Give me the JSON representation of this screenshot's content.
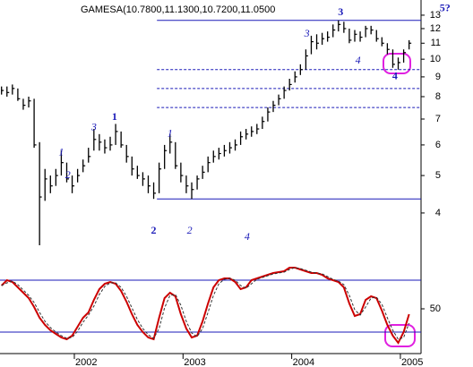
{
  "chart_data": [
    {
      "type": "ohlc",
      "title": "GAMESA(10.7800,11.1300,10.7200,11.0500",
      "log_scale": true,
      "color": "#000000",
      "x": [
        2001.33,
        2001.38,
        2001.43,
        2001.48,
        2001.53,
        2001.58,
        2001.63,
        2001.68,
        2001.73,
        2001.78,
        2001.83,
        2001.88,
        2001.93,
        2001.98,
        2002.03,
        2002.08,
        2002.13,
        2002.18,
        2002.23,
        2002.28,
        2002.33,
        2002.38,
        2002.43,
        2002.48,
        2002.53,
        2002.58,
        2002.63,
        2002.68,
        2002.73,
        2002.78,
        2002.83,
        2002.88,
        2002.93,
        2002.98,
        2003.03,
        2003.08,
        2003.13,
        2003.18,
        2003.23,
        2003.28,
        2003.33,
        2003.38,
        2003.43,
        2003.48,
        2003.53,
        2003.58,
        2003.63,
        2003.68,
        2003.73,
        2003.78,
        2003.83,
        2003.88,
        2003.93,
        2003.98,
        2004.03,
        2004.08,
        2004.13,
        2004.18,
        2004.23,
        2004.28,
        2004.33,
        2004.38,
        2004.43,
        2004.48,
        2004.53,
        2004.58,
        2004.63,
        2004.68,
        2004.73,
        2004.78,
        2004.83,
        2004.88,
        2004.93,
        2004.98,
        2005.03,
        2005.08
      ],
      "high": [
        8.5,
        8.5,
        8.6,
        8.4,
        7.9,
        8.0,
        7.9,
        6.1,
        5.2,
        5.0,
        5.2,
        5.8,
        5.4,
        5.0,
        5.2,
        5.5,
        5.9,
        6.6,
        6.4,
        6.2,
        6.3,
        6.8,
        6.5,
        6.0,
        5.6,
        5.3,
        5.1,
        5.0,
        4.8,
        5.4,
        6.0,
        6.4,
        6.1,
        5.4,
        5.0,
        4.8,
        5.0,
        5.3,
        5.6,
        5.8,
        5.9,
        6.0,
        6.1,
        6.2,
        6.5,
        6.6,
        6.7,
        6.8,
        7.1,
        7.5,
        7.8,
        8.1,
        8.5,
        8.9,
        9.3,
        9.7,
        10.6,
        11.5,
        11.6,
        11.7,
        11.8,
        12.3,
        12.6,
        12.5,
        12.0,
        11.9,
        11.8,
        12.2,
        12.2,
        11.9,
        11.4,
        11.0,
        10.6,
        10.1,
        10.6,
        11.2
      ],
      "low": [
        8.1,
        8.0,
        8.1,
        7.8,
        7.4,
        7.5,
        5.9,
        3.3,
        4.3,
        4.5,
        4.7,
        5.0,
        4.8,
        4.5,
        4.8,
        5.1,
        5.4,
        5.8,
        5.8,
        5.7,
        5.8,
        6.0,
        5.9,
        5.4,
        5.0,
        4.9,
        4.7,
        4.5,
        4.35,
        4.5,
        5.2,
        5.7,
        5.2,
        4.8,
        4.5,
        4.35,
        4.6,
        4.9,
        5.1,
        5.4,
        5.5,
        5.6,
        5.7,
        5.8,
        6.0,
        6.2,
        6.3,
        6.4,
        6.6,
        6.9,
        7.3,
        7.6,
        7.9,
        8.3,
        8.7,
        9.1,
        9.4,
        10.3,
        10.6,
        10.9,
        11.1,
        11.4,
        11.8,
        11.7,
        11.0,
        11.1,
        11.1,
        11.4,
        11.6,
        11.1,
        10.8,
        10.3,
        9.5,
        9.4,
        9.8,
        10.6
      ],
      "close": [
        8.3,
        8.2,
        8.4,
        7.9,
        7.6,
        7.8,
        6.0,
        4.4,
        4.9,
        4.7,
        5.0,
        5.4,
        4.9,
        4.7,
        5.0,
        5.3,
        5.6,
        6.2,
        6.1,
        5.9,
        6.0,
        6.5,
        6.0,
        5.6,
        5.2,
        5.0,
        4.9,
        4.7,
        4.5,
        5.2,
        5.8,
        6.1,
        5.3,
        5.0,
        4.7,
        4.6,
        4.9,
        5.1,
        5.4,
        5.6,
        5.7,
        5.8,
        5.9,
        6.0,
        6.3,
        6.4,
        6.5,
        6.6,
        6.9,
        7.3,
        7.6,
        7.9,
        8.3,
        8.6,
        9.0,
        9.4,
        10.2,
        11.1,
        11.0,
        11.3,
        11.4,
        11.9,
        12.3,
        12.0,
        11.2,
        11.6,
        11.4,
        12.0,
        11.9,
        11.3,
        11.0,
        10.6,
        9.7,
        9.8,
        10.4,
        11.0
      ],
      "xlim": [
        2001.316,
        2005.19
      ],
      "xticks": [
        2002,
        2003,
        2004,
        2005
      ],
      "ylim": [
        3.03,
        14.23
      ],
      "yticks": [
        4,
        5,
        6,
        7,
        8,
        9,
        10,
        11,
        12,
        13
      ],
      "hlines": [
        {
          "value": 12.6,
          "from": 2002.76,
          "dashed": false,
          "color": "#1a1ab8"
        },
        {
          "value": 9.4,
          "from": 2002.76,
          "dashed": true,
          "color": "#1a1ab8"
        },
        {
          "value": 8.4,
          "from": 2002.76,
          "dashed": true,
          "color": "#1a1ab8"
        },
        {
          "value": 7.5,
          "from": 2002.76,
          "dashed": true,
          "color": "#1a1ab8"
        },
        {
          "value": 4.35,
          "from": 2002.76,
          "dashed": false,
          "color": "#1a1ab8"
        }
      ],
      "annotations": [
        {
          "text": "1",
          "x": 2001.88,
          "y": 5.72,
          "bold": false
        },
        {
          "text": "2",
          "x": 2001.94,
          "y": 4.99,
          "bold": false
        },
        {
          "text": "3",
          "x": 2002.18,
          "y": 6.64,
          "bold": false
        },
        {
          "text": "1",
          "x": 2002.37,
          "y": 7.06,
          "bold": true
        },
        {
          "text": "2",
          "x": 2002.73,
          "y": 3.59,
          "bold": true
        },
        {
          "text": "1",
          "x": 2002.88,
          "y": 6.4,
          "bold": false
        },
        {
          "text": "2",
          "x": 2003.06,
          "y": 3.59,
          "bold": false
        },
        {
          "text": "4",
          "x": 2003.59,
          "y": 3.46,
          "bold": false
        },
        {
          "text": "3",
          "x": 2004.14,
          "y": 11.6,
          "bold": false
        },
        {
          "text": "3",
          "x": 2004.45,
          "y": 13.2,
          "bold": true
        },
        {
          "text": "4",
          "x": 2004.61,
          "y": 9.9,
          "bold": false
        },
        {
          "text": "4",
          "x": 2004.95,
          "y": 9.0,
          "bold": true
        },
        {
          "text": "5?",
          "x": 2005.41,
          "y": 13.5,
          "bold": true
        }
      ]
    },
    {
      "type": "line",
      "x": [
        2001.33,
        2001.38,
        2001.43,
        2001.48,
        2001.53,
        2001.58,
        2001.63,
        2001.68,
        2001.73,
        2001.78,
        2001.83,
        2001.88,
        2001.93,
        2001.98,
        2002.03,
        2002.08,
        2002.13,
        2002.18,
        2002.23,
        2002.28,
        2002.33,
        2002.38,
        2002.43,
        2002.48,
        2002.53,
        2002.58,
        2002.63,
        2002.68,
        2002.73,
        2002.78,
        2002.83,
        2002.88,
        2002.93,
        2002.98,
        2003.03,
        2003.08,
        2003.13,
        2003.18,
        2003.23,
        2003.28,
        2003.33,
        2003.38,
        2003.43,
        2003.48,
        2003.53,
        2003.58,
        2003.63,
        2003.68,
        2003.73,
        2003.78,
        2003.83,
        2003.88,
        2003.93,
        2003.98,
        2004.03,
        2004.08,
        2004.13,
        2004.18,
        2004.23,
        2004.28,
        2004.33,
        2004.38,
        2004.43,
        2004.48,
        2004.53,
        2004.58,
        2004.63,
        2004.68,
        2004.73,
        2004.78,
        2004.83,
        2004.88,
        2004.93,
        2004.98,
        2005.03,
        2005.08
      ],
      "series": [
        {
          "color": "#cc0000",
          "dashed": false,
          "values": [
            76,
            82,
            80,
            74,
            68,
            62,
            52,
            40,
            32,
            26,
            22,
            18,
            16,
            20,
            30,
            40,
            46,
            60,
            72,
            78,
            80,
            78,
            70,
            58,
            44,
            32,
            24,
            18,
            16,
            40,
            62,
            68,
            64,
            44,
            28,
            18,
            20,
            36,
            56,
            74,
            82,
            84,
            84,
            80,
            72,
            74,
            82,
            84,
            86,
            88,
            90,
            91,
            92,
            96,
            96,
            94,
            92,
            90,
            90,
            88,
            84,
            82,
            80,
            74,
            56,
            42,
            44,
            60,
            64,
            62,
            48,
            32,
            20,
            12,
            24,
            44
          ]
        },
        {
          "color": "#333333",
          "dashed": true,
          "values": [
            76,
            79,
            81,
            77,
            71,
            65,
            57,
            46,
            36,
            29,
            24,
            20,
            17,
            18,
            25,
            35,
            43,
            53,
            66,
            75,
            79,
            79,
            74,
            64,
            51,
            38,
            28,
            21,
            17,
            28,
            51,
            65,
            66,
            54,
            36,
            23,
            19,
            28,
            46,
            65,
            78,
            83,
            84,
            82,
            76,
            73,
            78,
            83,
            85,
            87,
            89,
            90,
            91,
            94,
            96,
            95,
            93,
            91,
            90,
            89,
            86,
            83,
            81,
            77,
            65,
            49,
            43,
            52,
            62,
            63,
            55,
            40,
            26,
            16,
            18,
            34
          ]
        }
      ],
      "xlim": [
        2001.316,
        2005.19
      ],
      "xticks": [
        2002,
        2003,
        2004,
        2005
      ],
      "ylim": [
        0,
        100
      ],
      "yticks": [
        50
      ],
      "hlines": [
        {
          "value": 82,
          "color": "#1a1ab8"
        },
        {
          "value": 24,
          "color": "#1a1ab8"
        }
      ]
    }
  ]
}
